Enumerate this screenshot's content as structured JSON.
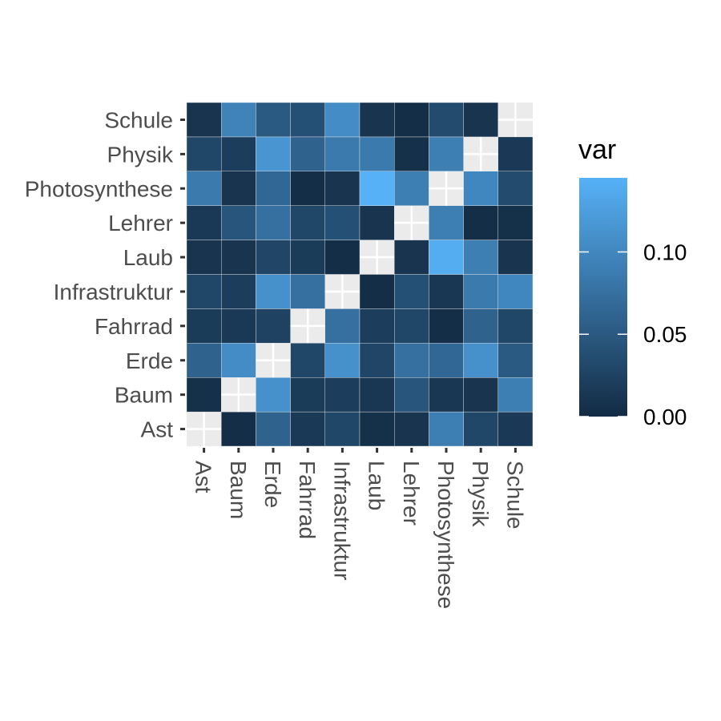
{
  "chart_data": {
    "type": "heatmap",
    "x_categories": [
      "Ast",
      "Baum",
      "Erde",
      "Fahrrad",
      "Infrastruktur",
      "Laub",
      "Lehrer",
      "Photosynthese",
      "Physik",
      "Schule"
    ],
    "y_categories": [
      "Ast",
      "Baum",
      "Erde",
      "Fahrrad",
      "Infrastruktur",
      "Laub",
      "Lehrer",
      "Photosynthese",
      "Physik",
      "Schule"
    ],
    "values": [
      [
        null,
        0.005,
        0.06,
        0.018,
        0.03,
        0.01,
        0.015,
        0.085,
        0.03,
        0.01
      ],
      [
        0.003,
        null,
        0.105,
        0.015,
        0.02,
        0.01,
        0.045,
        0.01,
        0.02,
        0.095
      ],
      [
        0.06,
        0.11,
        null,
        0.025,
        0.11,
        0.028,
        0.075,
        0.065,
        0.115,
        0.05
      ],
      [
        0.015,
        0.018,
        0.03,
        null,
        0.075,
        0.018,
        0.03,
        0.003,
        0.06,
        0.04
      ],
      [
        0.03,
        0.02,
        0.11,
        0.075,
        null,
        0.003,
        0.04,
        0.01,
        0.085,
        0.105
      ],
      [
        0.005,
        0.012,
        0.028,
        0.02,
        0.003,
        null,
        0.01,
        0.145,
        0.085,
        0.01
      ],
      [
        0.01,
        0.045,
        0.075,
        0.03,
        0.04,
        0.01,
        null,
        0.09,
        0.005,
        0.003
      ],
      [
        0.09,
        0.012,
        0.065,
        0.003,
        0.012,
        0.14,
        0.09,
        null,
        0.09,
        0.035
      ],
      [
        0.03,
        0.01,
        0.11,
        0.06,
        0.085,
        0.09,
        0.003,
        0.1,
        null,
        0.01
      ],
      [
        0.015,
        0.09,
        0.05,
        0.03,
        0.1,
        0.01,
        0.005,
        0.035,
        0.015,
        null
      ]
    ],
    "legend": {
      "title": "var",
      "ticks": [
        {
          "value": 0.0,
          "label": "0.00"
        },
        {
          "value": 0.05,
          "label": "0.05"
        },
        {
          "value": 0.1,
          "label": "0.10"
        }
      ],
      "range": [
        0.0,
        0.145
      ],
      "low_color": "#132b43",
      "high_color": "#56b1f7",
      "placement": "right"
    },
    "na_color": "#ebebeb",
    "xlabel": "",
    "ylabel": ""
  }
}
